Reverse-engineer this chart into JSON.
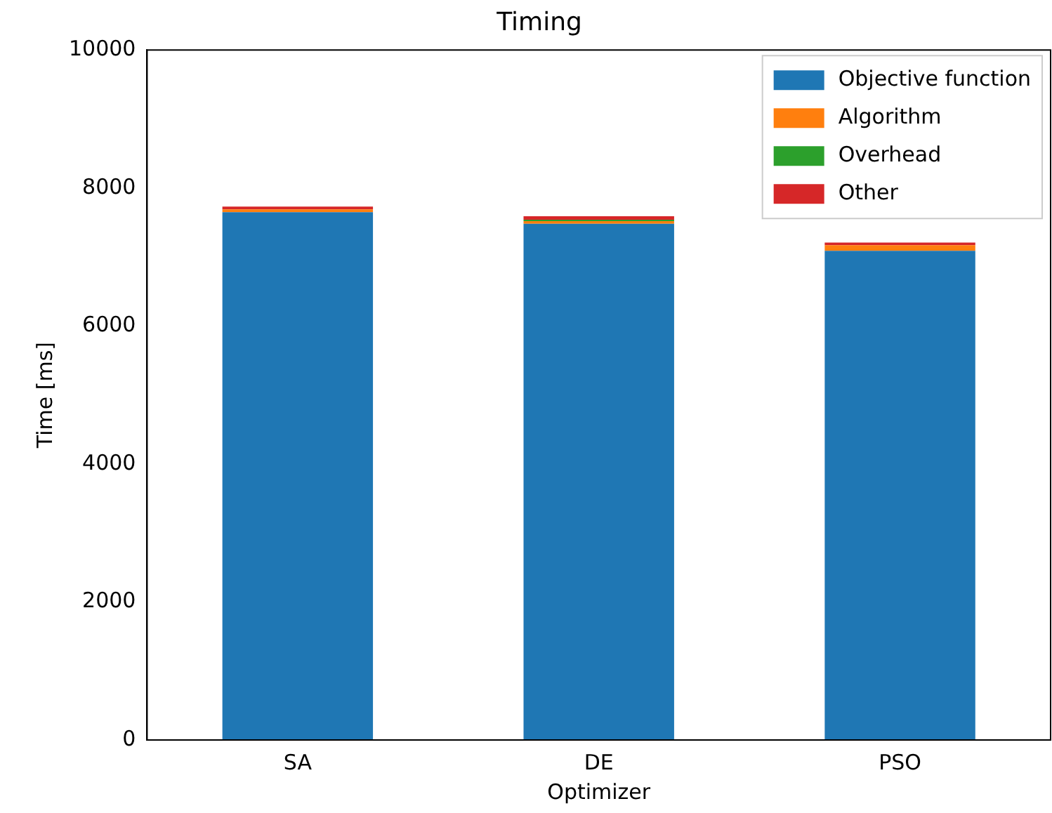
{
  "chart_data": {
    "type": "bar",
    "stacked": true,
    "title": "Timing",
    "xlabel": "Optimizer",
    "ylabel": "Time [ms]",
    "categories": [
      "SA",
      "DE",
      "PSO"
    ],
    "series": [
      {
        "name": "Objective function",
        "color": "#1f77b4",
        "values": [
          7650,
          7480,
          7090
        ]
      },
      {
        "name": "Algorithm",
        "color": "#ff7f0e",
        "values": [
          40,
          40,
          80
        ]
      },
      {
        "name": "Overhead",
        "color": "#2ca02c",
        "values": [
          0,
          20,
          0
        ]
      },
      {
        "name": "Other",
        "color": "#d62728",
        "values": [
          40,
          50,
          40
        ]
      }
    ],
    "ylim": [
      0,
      10000
    ],
    "yticks": [
      0,
      2000,
      4000,
      6000,
      8000,
      10000
    ],
    "grid": false,
    "legend": "top right"
  }
}
